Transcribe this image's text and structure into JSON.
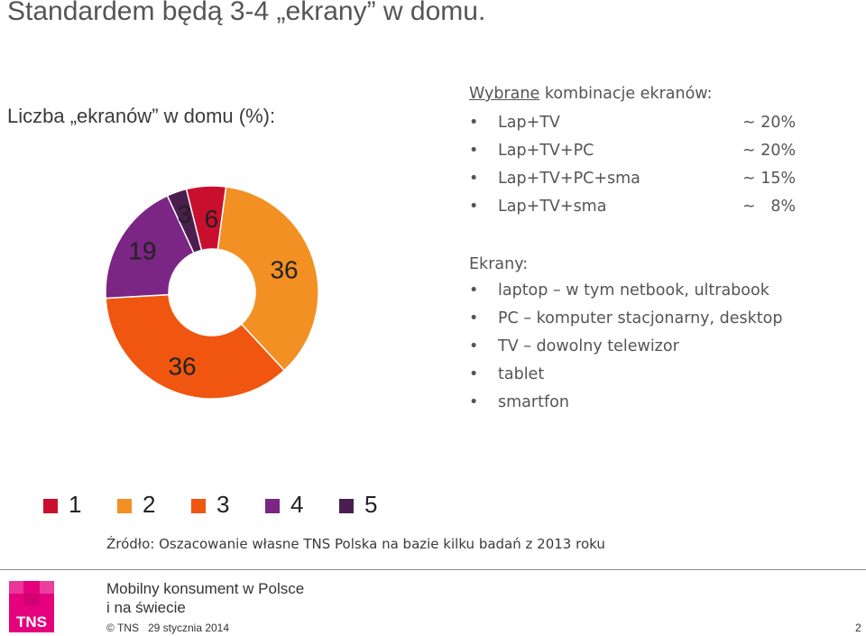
{
  "title": "Standardem będą 3-4 „ekrany” w domu.",
  "chart_heading": "Liczba „ekranów” w domu (%):",
  "chart_data": {
    "type": "pie",
    "variant": "donut",
    "categories": [
      "1",
      "2",
      "3",
      "4",
      "5"
    ],
    "values": [
      6,
      36,
      36,
      19,
      3
    ],
    "colors": [
      "#c8102e",
      "#f39023",
      "#f0560f",
      "#7b2585",
      "#4a1e4e"
    ],
    "legend_position": "bottom"
  },
  "combinations": {
    "title_underlined": "Wybrane",
    "title_rest": " kombinacje ekranów:",
    "items": [
      {
        "label": "Lap+TV",
        "value": "~ 20%"
      },
      {
        "label": "Lap+TV+PC",
        "value": "~ 20%"
      },
      {
        "label": "Lap+TV+PC+sma",
        "value": "~ 15%"
      },
      {
        "label": "Lap+TV+sma",
        "value": "~   8%"
      }
    ]
  },
  "screens": {
    "title": "Ekrany:",
    "items": [
      "laptop – w tym netbook, ultrabook",
      "PC – komputer stacjonarny, desktop",
      "TV – dowolny telewizor",
      "tablet",
      "smartfon"
    ]
  },
  "bullet_char": "•",
  "source": "Źródło: Oszacowanie własne TNS Polska na bazie kilku badań z 2013 roku",
  "footer": {
    "title_line1": "Mobilny konsument w Polsce",
    "title_line2": "i na świecie",
    "copyright": "© TNS   29 stycznia 2014",
    "page_number": "2",
    "logo_text": "TNS",
    "logo_color": "#e5007e"
  }
}
